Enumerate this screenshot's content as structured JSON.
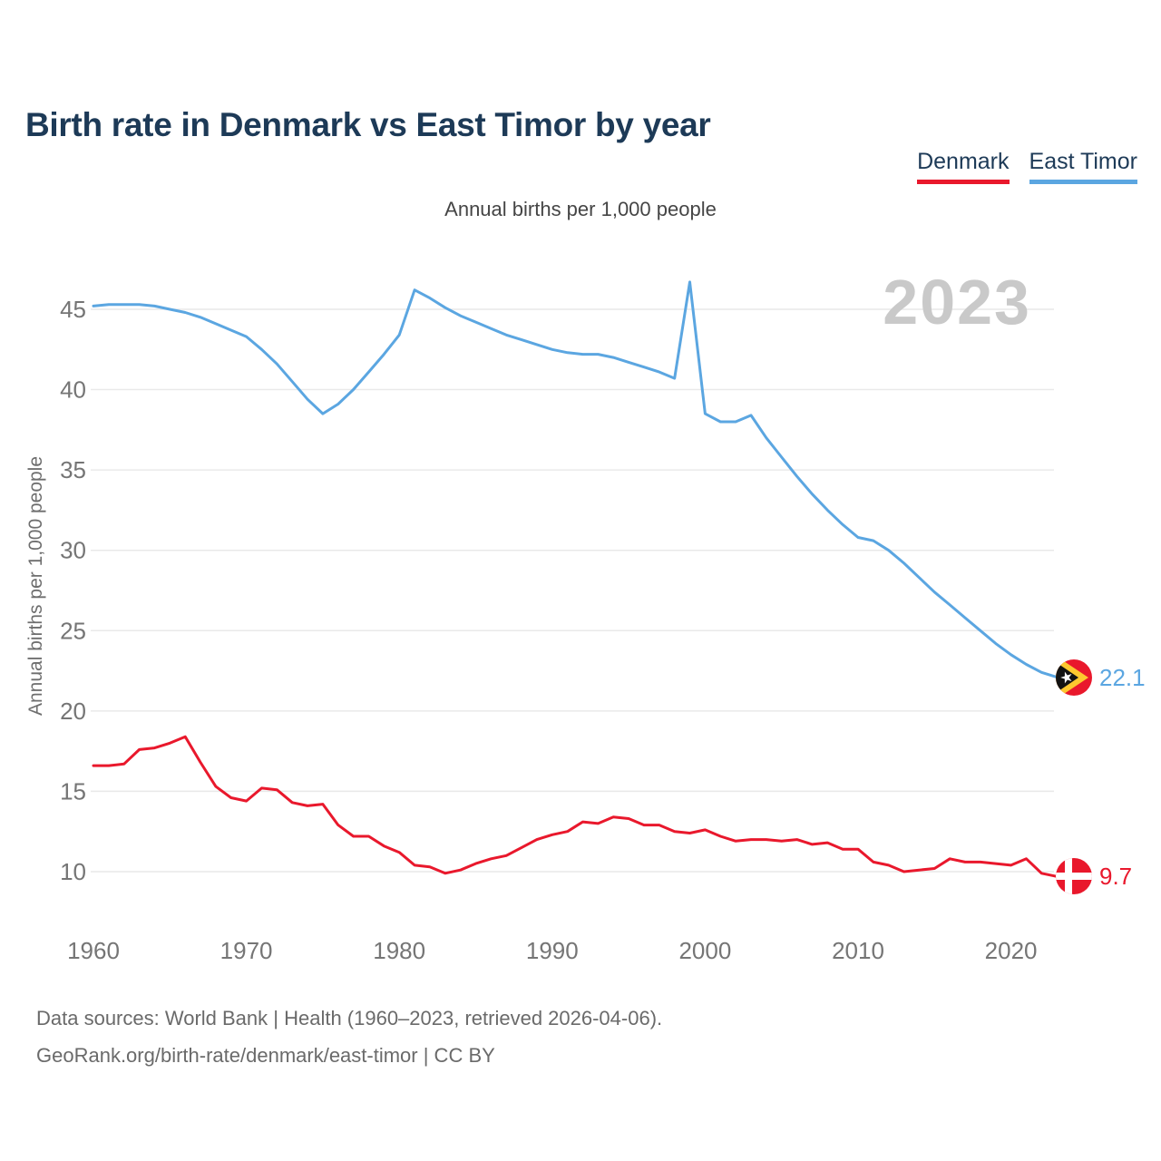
{
  "page": {
    "title": "Birth rate in Denmark vs East Timor by year",
    "subtitle": "Annual births per 1,000 people",
    "footer": {
      "line1": "Data sources: World Bank | Health (1960–2023, retrieved 2026-04-06).",
      "line2": "GeoRank.org/birth-rate/denmark/east-timor | CC BY"
    }
  },
  "legend": {
    "items": [
      {
        "label": "Denmark",
        "color": "#e9182c"
      },
      {
        "label": "East Timor",
        "color": "#5ba6e1"
      }
    ]
  },
  "chart_data": {
    "type": "line",
    "title": "Birth rate in Denmark vs East Timor by year",
    "subtitle": "Annual births per 1,000 people",
    "ylabel": "Annual births per 1,000 people",
    "xlabel": "",
    "watermark": "2023",
    "grid": "horizontal",
    "legend_position": "top-right",
    "ylim": [
      8.5,
      47.5
    ],
    "xlim": [
      1960,
      2023
    ],
    "yticks": [
      10,
      15,
      20,
      25,
      30,
      35,
      40,
      45
    ],
    "xticks": [
      1960,
      1970,
      1980,
      1990,
      2000,
      2010,
      2020
    ],
    "x": [
      1960,
      1961,
      1962,
      1963,
      1964,
      1965,
      1966,
      1967,
      1968,
      1969,
      1970,
      1971,
      1972,
      1973,
      1974,
      1975,
      1976,
      1977,
      1978,
      1979,
      1980,
      1981,
      1982,
      1983,
      1984,
      1985,
      1986,
      1987,
      1988,
      1989,
      1990,
      1991,
      1992,
      1993,
      1994,
      1995,
      1996,
      1997,
      1998,
      1999,
      2000,
      2001,
      2002,
      2003,
      2004,
      2005,
      2006,
      2007,
      2008,
      2009,
      2010,
      2011,
      2012,
      2013,
      2014,
      2015,
      2016,
      2017,
      2018,
      2019,
      2020,
      2021,
      2022,
      2023
    ],
    "series": [
      {
        "name": "Denmark",
        "color": "#e9182c",
        "end_label": "9.7",
        "values": [
          16.6,
          16.6,
          16.7,
          17.6,
          17.7,
          18.0,
          18.4,
          16.8,
          15.3,
          14.6,
          14.4,
          15.2,
          15.1,
          14.3,
          14.1,
          14.2,
          12.9,
          12.2,
          12.2,
          11.6,
          11.2,
          10.4,
          10.3,
          9.9,
          10.1,
          10.5,
          10.8,
          11.0,
          11.5,
          12.0,
          12.3,
          12.5,
          13.1,
          13.0,
          13.4,
          13.3,
          12.9,
          12.9,
          12.5,
          12.4,
          12.6,
          12.2,
          11.9,
          12.0,
          12.0,
          11.9,
          12.0,
          11.7,
          11.8,
          11.4,
          11.4,
          10.6,
          10.4,
          10.0,
          10.1,
          10.2,
          10.8,
          10.6,
          10.6,
          10.5,
          10.4,
          10.8,
          9.9,
          9.7
        ]
      },
      {
        "name": "East Timor",
        "color": "#5ba6e1",
        "end_label": "22.1",
        "values": [
          45.2,
          45.3,
          45.3,
          45.3,
          45.2,
          45.0,
          44.8,
          44.5,
          44.1,
          43.7,
          43.3,
          42.5,
          41.6,
          40.5,
          39.4,
          38.5,
          39.1,
          40.0,
          41.1,
          42.2,
          43.4,
          46.2,
          45.7,
          45.1,
          44.6,
          44.2,
          43.8,
          43.4,
          43.1,
          42.8,
          42.5,
          42.3,
          42.2,
          42.2,
          42.0,
          41.7,
          41.4,
          41.1,
          40.7,
          46.7,
          38.5,
          38.0,
          38.0,
          38.4,
          37.0,
          35.8,
          34.6,
          33.5,
          32.5,
          31.6,
          30.8,
          30.6,
          30.0,
          29.2,
          28.3,
          27.4,
          26.6,
          25.8,
          25.0,
          24.2,
          23.5,
          22.9,
          22.4,
          22.1
        ]
      }
    ]
  }
}
